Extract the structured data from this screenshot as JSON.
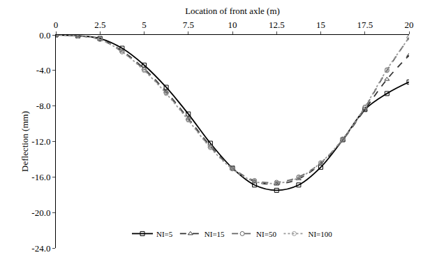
{
  "chart_data": {
    "type": "line",
    "x_label": "Location of front axle (m)",
    "y_label": "Deflection (mm)",
    "x": [
      0,
      1.25,
      2.5,
      3.75,
      5,
      6.25,
      7.5,
      8.75,
      10,
      11.25,
      12.5,
      13.75,
      15,
      16.25,
      17.5,
      18.75,
      20
    ],
    "series": [
      {
        "name": "NI=5",
        "color": "#000000",
        "marker": "square",
        "line_style": "solid",
        "values": [
          0,
          -0.1,
          -0.4,
          -1.5,
          -3.4,
          -5.9,
          -8.9,
          -12.2,
          -15.0,
          -16.9,
          -17.5,
          -16.9,
          -14.9,
          -11.8,
          -8.4,
          -6.6,
          -5.3
        ]
      },
      {
        "name": "NI=15",
        "color": "#333333",
        "marker": "triangle",
        "line_style": "dash",
        "values": [
          0,
          -0.1,
          -0.5,
          -1.8,
          -3.8,
          -6.4,
          -9.4,
          -12.5,
          -15.0,
          -16.5,
          -16.8,
          -16.2,
          -14.5,
          -11.8,
          -8.4,
          -5.0,
          -2.3
        ]
      },
      {
        "name": "NI=50",
        "color": "#666666",
        "marker": "circle",
        "line_style": "dash",
        "values": [
          0,
          -0.1,
          -0.5,
          -1.9,
          -3.9,
          -6.5,
          -9.5,
          -12.6,
          -15.0,
          -16.4,
          -16.6,
          -16.0,
          -14.4,
          -11.8,
          -8.2,
          -4.0,
          -0.3
        ]
      },
      {
        "name": "NI=100",
        "color": "#999999",
        "marker": "circle",
        "line_style": "dot",
        "values": [
          0,
          -0.1,
          -0.5,
          -1.9,
          -4.0,
          -6.6,
          -9.6,
          -12.7,
          -15.1,
          -16.5,
          -16.7,
          -16.1,
          -14.4,
          -11.7,
          -8.1,
          -3.9,
          -0.3
        ]
      }
    ],
    "xlim": [
      0,
      20
    ],
    "xticks": [
      0,
      2.5,
      5,
      7.5,
      10,
      12.5,
      15,
      17.5,
      20
    ],
    "ylim": [
      -24,
      0
    ],
    "yticks": [
      {
        "value": 0,
        "label": "0.0"
      },
      {
        "value": -4,
        "label": "-4.0"
      },
      {
        "value": -8,
        "label": "-8.0"
      },
      {
        "value": -12,
        "label": "-12.0"
      },
      {
        "value": -16,
        "label": "-16.0"
      },
      {
        "value": -20,
        "label": "-20.0"
      },
      {
        "value": -24,
        "label": "-24.0"
      }
    ],
    "grid": false,
    "legend": "bottom"
  }
}
